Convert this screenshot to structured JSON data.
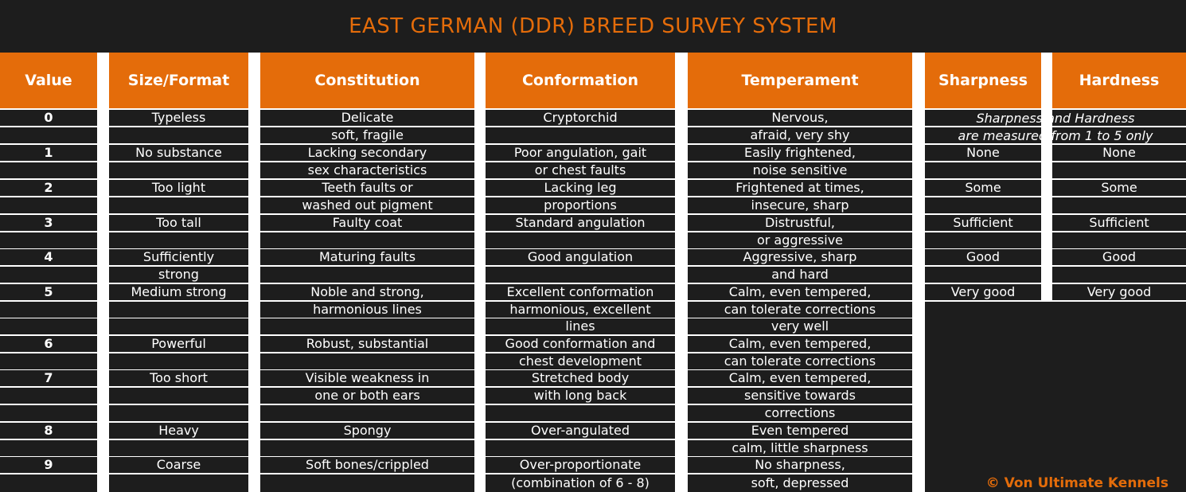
{
  "title": "EAST GERMAN (DDR) BREED SURVEY SYSTEM",
  "columns": [
    {
      "header": "Value",
      "bold": true,
      "cells": [
        "0",
        "",
        "1",
        "",
        "2",
        "",
        "3",
        "",
        "4",
        "",
        "5",
        "",
        "",
        "6",
        "",
        "7",
        "",
        "",
        "8",
        "",
        "9",
        ""
      ]
    },
    {
      "header": "Size/Format",
      "cells": [
        "Typeless",
        "",
        "No substance",
        "",
        "Too light",
        "",
        "Too tall",
        "",
        "Sufficiently",
        "strong",
        "Medium strong",
        "",
        "",
        "Powerful",
        "",
        "Too short",
        "",
        "",
        "Heavy",
        "",
        "Coarse",
        ""
      ]
    },
    {
      "header": "Constitution",
      "cells": [
        "Delicate",
        "soft, fragile",
        "Lacking secondary",
        "sex characteristics",
        "Teeth faults or",
        "washed out pigment",
        "Faulty coat",
        "",
        "Maturing faults",
        "",
        "Noble and strong,",
        "harmonious lines",
        "",
        "Robust, substantial",
        "",
        "Visible weakness in",
        "one or both ears",
        "",
        "Spongy",
        "",
        "Soft bones/crippled",
        ""
      ]
    },
    {
      "header": "Conformation",
      "cells": [
        "Cryptorchid",
        "",
        "Poor angulation, gait",
        "or chest faults",
        "Lacking leg",
        "proportions",
        "Standard angulation",
        "",
        "Good angulation",
        "",
        "Excellent conformation",
        "harmonious, excellent",
        "lines",
        "Good conformation and",
        "chest development",
        "Stretched body",
        "with long back",
        "",
        "Over-angulated",
        "",
        "Over-proportionate",
        "(combination of 6 - 8)"
      ]
    },
    {
      "header": "Temperament",
      "cells": [
        "Nervous,",
        "afraid, very shy",
        "Easily frightened,",
        "noise sensitive",
        "Frightened at times,",
        "insecure, sharp",
        "Distrustful,",
        "or aggressive",
        "Aggressive, sharp",
        "and hard",
        "Calm, even tempered,",
        "can tolerate corrections",
        "very well",
        "Calm, even tempered,",
        "can tolerate corrections",
        "Calm, even tempered,",
        "sensitive towards",
        "corrections",
        "Even tempered",
        "calm, little sharpness",
        "No sharpness,",
        "soft, depressed"
      ]
    },
    {
      "header": "Sharpness",
      "cells": [
        "",
        "",
        "None",
        "",
        "Some",
        "",
        "Sufficient",
        "",
        "Good",
        "",
        "Very good"
      ]
    },
    {
      "header": "Hardness",
      "cells": [
        "",
        "",
        "None",
        "",
        "Some",
        "",
        "Sufficient",
        "",
        "Good",
        "",
        "Very good"
      ]
    }
  ],
  "note": {
    "line1": "Sharpness and Hardness",
    "line2": "are measured from 1 to 5 only"
  },
  "copyright": "© Von Ultimate Kennels",
  "colors": {
    "accent": "#e46c0a",
    "dark": "#1d1d1d",
    "text": "#ffffff"
  }
}
